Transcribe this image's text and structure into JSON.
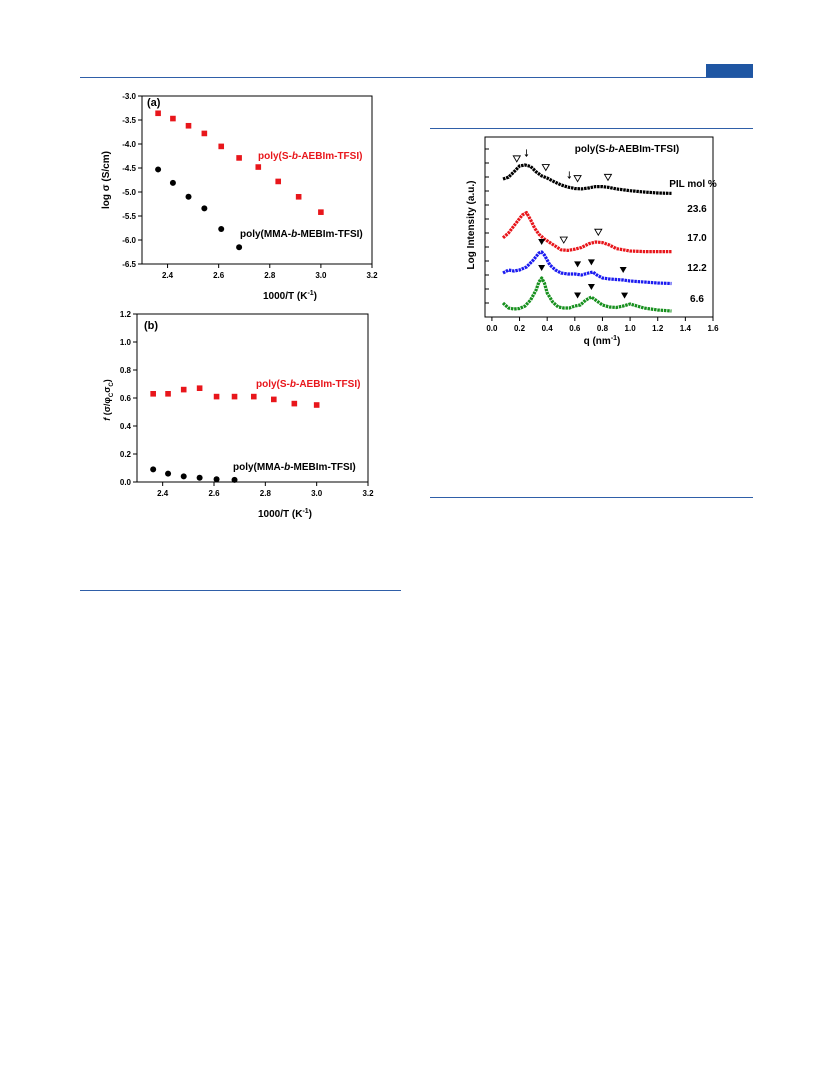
{
  "page": {
    "accent": "#1f56a3"
  },
  "chart_data": [
    {
      "id": "a",
      "type": "scatter",
      "panel_label": "(a)",
      "xlabel": "1000/T (K",
      "xlabel_sup": "-1",
      "xlabel_close": ")",
      "ylabel": "log σ (S/cm)",
      "xlim": [
        2.3,
        3.2
      ],
      "ylim": [
        -6.5,
        -3.0
      ],
      "xticks": [
        2.4,
        2.6,
        2.8,
        3.0,
        3.2
      ],
      "xtick_labels": [
        "2.4",
        "2.6",
        "2.8",
        "3.0",
        "3.2"
      ],
      "yticks": [
        -3.0,
        -3.5,
        -4.0,
        -4.5,
        -5.0,
        -5.5,
        -6.0,
        -6.5
      ],
      "ytick_labels": [
        "-3.0",
        "-3.5",
        "-4.0",
        "-4.5",
        "-5.0",
        "-5.5",
        "-6.0",
        "-6.5"
      ],
      "series": [
        {
          "name": "poly(S-b-AEBIm-TFSI)",
          "label_pre": "poly(S-",
          "label_italic": "b",
          "label_post": "-AEBIm-TFSI)",
          "color": "#e8161b",
          "marker": "square",
          "x": [
            2.363,
            2.421,
            2.482,
            2.544,
            2.61,
            2.68,
            2.755,
            2.833,
            2.913,
            3.0
          ],
          "y": [
            -3.36,
            -3.47,
            -3.62,
            -3.78,
            -4.05,
            -4.29,
            -4.48,
            -4.78,
            -5.1,
            -5.42
          ]
        },
        {
          "name": "poly(MMA-b-MEBIm-TFSI)",
          "label_pre": "poly(MMA-",
          "label_italic": "b",
          "label_post": "-MEBIm-TFSI)",
          "color": "#000000",
          "marker": "circle",
          "x": [
            2.363,
            2.421,
            2.482,
            2.544,
            2.61,
            2.68
          ],
          "y": [
            -4.53,
            -4.81,
            -5.1,
            -5.34,
            -5.77,
            -6.15
          ]
        }
      ]
    },
    {
      "id": "b",
      "type": "scatter",
      "panel_label": "(b)",
      "xlabel": "1000/T (K",
      "xlabel_sup": "-1",
      "xlabel_close": ")",
      "ylabel_f": "f",
      "ylabel_rest": " (σ/φ",
      "ylabel_sub1": "C",
      "ylabel_sigma": "σ",
      "ylabel_sub2": "C",
      "ylabel_close": ")",
      "xlim": [
        2.3,
        3.2
      ],
      "ylim": [
        0.0,
        1.2
      ],
      "xticks": [
        2.4,
        2.6,
        2.8,
        3.0,
        3.2
      ],
      "xtick_labels": [
        "2.4",
        "2.6",
        "2.8",
        "3.0",
        "3.2"
      ],
      "yticks": [
        0.0,
        0.2,
        0.4,
        0.6,
        0.8,
        1.0,
        1.2
      ],
      "ytick_labels": [
        "0.0",
        "0.2",
        "0.4",
        "0.6",
        "0.8",
        "1.0",
        "1.2"
      ],
      "series": [
        {
          "name": "poly(S-b-AEBIm-TFSI)",
          "label_pre": "poly(S-",
          "label_italic": "b",
          "label_post": "-AEBIm-TFSI)",
          "color": "#e8161b",
          "marker": "square",
          "x": [
            2.363,
            2.421,
            2.482,
            2.544,
            2.61,
            2.68,
            2.755,
            2.833,
            2.913,
            3.0
          ],
          "y": [
            0.63,
            0.63,
            0.66,
            0.67,
            0.61,
            0.61,
            0.61,
            0.59,
            0.56,
            0.55
          ]
        },
        {
          "name": "poly(MMA-b-MEBIm-TFSI)",
          "label_pre": "poly(MMA-",
          "label_italic": "b",
          "label_post": "-MEBIm-TFSI)",
          "color": "#000000",
          "marker": "circle",
          "x": [
            2.363,
            2.421,
            2.482,
            2.544,
            2.61,
            2.68
          ],
          "y": [
            0.09,
            0.06,
            0.04,
            0.03,
            0.02,
            0.015
          ]
        }
      ]
    },
    {
      "id": "c",
      "type": "line",
      "title_pre": "poly(S-",
      "title_italic": "b",
      "title_post": "-AEBIm-TFSI)",
      "legend_header": "PIL mol %",
      "xlabel": "q (nm",
      "xlabel_sup": "-1",
      "xlabel_close": ")",
      "ylabel": "Log Intensity (a.u.)",
      "xlim": [
        -0.05,
        1.6
      ],
      "xticks": [
        0.0,
        0.2,
        0.4,
        0.6,
        0.8,
        1.0,
        1.2,
        1.4,
        1.6
      ],
      "xtick_labels": [
        "0.0",
        "0.2",
        "0.4",
        "0.6",
        "0.8",
        "1.0",
        "1.2",
        "1.4",
        "1.6"
      ],
      "series": [
        {
          "name": "23.6",
          "color": "#000000",
          "base": 0.0,
          "x": [
            0.08,
            0.12,
            0.16,
            0.2,
            0.24,
            0.28,
            0.32,
            0.36,
            0.4,
            0.45,
            0.5,
            0.55,
            0.6,
            0.65,
            0.7,
            0.75,
            0.8,
            0.85,
            0.9,
            1.0,
            1.1,
            1.2,
            1.3
          ],
          "y": [
            0.0,
            0.2,
            0.8,
            1.45,
            1.55,
            1.4,
            0.8,
            0.35,
            0.1,
            -0.3,
            -0.65,
            -0.9,
            -1.05,
            -1.1,
            -1.0,
            -0.85,
            -0.85,
            -0.95,
            -1.1,
            -1.3,
            -1.45,
            -1.55,
            -1.6
          ],
          "open_markers": [
            0.18,
            0.39,
            0.62,
            0.84
          ],
          "arrows": [
            0.25,
            0.56
          ]
        },
        {
          "name": "17.0",
          "color": "#e8161b",
          "base": 0.0,
          "x": [
            0.08,
            0.12,
            0.16,
            0.2,
            0.22,
            0.25,
            0.28,
            0.31,
            0.34,
            0.38,
            0.42,
            0.46,
            0.5,
            0.55,
            0.6,
            0.65,
            0.7,
            0.75,
            0.8,
            0.85,
            0.9,
            1.0,
            1.1,
            1.2,
            1.3
          ],
          "y": [
            0.1,
            0.5,
            1.1,
            1.7,
            2.0,
            2.2,
            1.6,
            0.9,
            0.4,
            0.0,
            -0.3,
            -0.6,
            -0.9,
            -0.95,
            -0.85,
            -0.7,
            -0.4,
            -0.25,
            -0.3,
            -0.5,
            -0.8,
            -1.0,
            -1.05,
            -1.05,
            -1.05
          ],
          "open_markers": [
            0.52,
            0.77
          ]
        },
        {
          "name": "12.2",
          "color": "#1b1bf0",
          "base": 0.0,
          "x": [
            0.08,
            0.12,
            0.16,
            0.2,
            0.25,
            0.3,
            0.34,
            0.36,
            0.38,
            0.42,
            0.46,
            0.5,
            0.55,
            0.6,
            0.65,
            0.7,
            0.73,
            0.76,
            0.8,
            0.85,
            0.9,
            0.95,
            1.0,
            1.1,
            1.2,
            1.3
          ],
          "y": [
            0.0,
            0.3,
            0.2,
            0.3,
            0.6,
            1.3,
            2.0,
            2.1,
            1.8,
            0.8,
            0.3,
            0.0,
            -0.1,
            -0.1,
            -0.2,
            0.0,
            0.1,
            -0.2,
            -0.5,
            -0.6,
            -0.65,
            -0.7,
            -0.8,
            -0.9,
            -1.0,
            -1.05
          ],
          "filled_markers": [
            0.36,
            0.62,
            0.72,
            0.95
          ]
        },
        {
          "name": "6.6",
          "color": "#17901e",
          "base": 0.0,
          "x": [
            0.08,
            0.12,
            0.16,
            0.2,
            0.24,
            0.28,
            0.32,
            0.34,
            0.36,
            0.38,
            0.4,
            0.44,
            0.48,
            0.52,
            0.56,
            0.6,
            0.64,
            0.68,
            0.72,
            0.76,
            0.8,
            0.85,
            0.9,
            0.95,
            1.0,
            1.05,
            1.1,
            1.2,
            1.3
          ],
          "y": [
            0.0,
            -0.5,
            -0.6,
            -0.55,
            -0.3,
            0.3,
            1.3,
            2.1,
            2.5,
            2.0,
            1.0,
            0.1,
            -0.4,
            -0.5,
            -0.5,
            -0.3,
            -0.2,
            0.3,
            0.6,
            0.2,
            -0.2,
            -0.4,
            -0.45,
            -0.3,
            -0.1,
            -0.3,
            -0.5,
            -0.7,
            -0.8
          ],
          "filled_markers": [
            0.36,
            0.62,
            0.72,
            0.96
          ]
        }
      ]
    }
  ]
}
